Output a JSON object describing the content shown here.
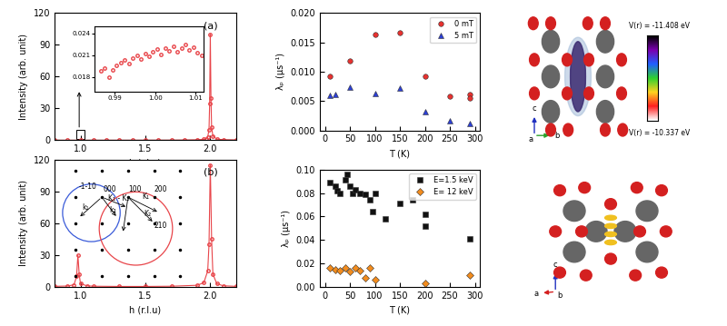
{
  "chart_data": [
    {
      "type": "line",
      "panel_label": "(a)",
      "x_label": "h (r.l.u)",
      "y_label": "Intensity (arb. unit)",
      "xlim": [
        0.8,
        2.2
      ],
      "ylim": [
        0,
        120
      ],
      "xticks": [
        {
          "value": 1.0,
          "label": "1.0"
        },
        {
          "value": 1.5,
          "label": "1.5"
        },
        {
          "value": 2.0,
          "label": "2.0"
        }
      ],
      "yticks": [
        0,
        30,
        60,
        90,
        120
      ],
      "series": [
        {
          "color": "#e8454a",
          "marker": "circle",
          "x": [
            0.8,
            0.9,
            1.0,
            1.1,
            1.2,
            1.3,
            1.4,
            1.5,
            1.6,
            1.7,
            1.8,
            1.9,
            1.95,
            1.97,
            1.98,
            1.99,
            1.995,
            2.0,
            2.005,
            2.01,
            2.02,
            2.05,
            2.1,
            2.2
          ],
          "values": [
            0.02,
            0.02,
            0.02,
            0.02,
            0.02,
            0.03,
            0.03,
            0.05,
            0.08,
            0.1,
            0.2,
            0.4,
            0.8,
            1.5,
            3,
            10,
            35,
            100,
            40,
            12,
            4,
            1,
            0.5,
            0.3
          ]
        }
      ]
    },
    {
      "type": "scatter",
      "xlim": [
        0.985,
        1.012
      ],
      "ylim": [
        0.016,
        0.025
      ],
      "xticks": [
        {
          "value": 0.99,
          "label": "0.99"
        },
        {
          "value": 1.0,
          "label": "1.00"
        },
        {
          "value": 1.01,
          "label": "1.01"
        }
      ],
      "yticks": [
        0.018,
        0.021,
        0.024
      ],
      "series": [
        {
          "color": "#e8454a",
          "marker": "circle",
          "x": [
            0.9865,
            0.9875,
            0.9885,
            0.9895,
            0.9905,
            0.9915,
            0.9925,
            0.9935,
            0.9945,
            0.9955,
            0.9965,
            0.9975,
            0.9985,
            0.9995,
            1.0005,
            1.0015,
            1.0025,
            1.0035,
            1.0045,
            1.0055,
            1.0065,
            1.0075,
            1.0085,
            1.0095,
            1.0105,
            1.0115
          ],
          "values": [
            0.0188,
            0.0192,
            0.018,
            0.019,
            0.0196,
            0.02,
            0.0203,
            0.0198,
            0.0206,
            0.021,
            0.0204,
            0.0212,
            0.0208,
            0.0215,
            0.0218,
            0.0211,
            0.022,
            0.0216,
            0.0222,
            0.0214,
            0.0219,
            0.0224,
            0.0217,
            0.0221,
            0.0213,
            0.021
          ]
        }
      ]
    },
    {
      "type": "line",
      "panel_label": "(b)",
      "x_label": "h (r.l.u)",
      "y_label": "Intensity (arb. unit)",
      "xlim": [
        0.8,
        2.2
      ],
      "ylim": [
        0,
        120
      ],
      "xticks": [
        {
          "value": 1.0,
          "label": "1.0"
        },
        {
          "value": 1.5,
          "label": "1.5"
        },
        {
          "value": 2.0,
          "label": "2.0"
        }
      ],
      "yticks": [
        0,
        30,
        60,
        90,
        120
      ],
      "annotations": [
        "-1-10",
        "000",
        "100",
        "200",
        "210",
        "k₁",
        "k₂",
        "K₁ - K₂",
        "K₁",
        "K₂"
      ],
      "series": [
        {
          "color": "#e8454a",
          "marker": "circle",
          "x": [
            0.8,
            0.9,
            0.95,
            0.97,
            0.98,
            0.99,
            1.0,
            1.05,
            1.1,
            1.3,
            1.5,
            1.7,
            1.9,
            1.95,
            1.98,
            1.99,
            2.0,
            2.01,
            2.02,
            2.05,
            2.1,
            2.2
          ],
          "values": [
            0.5,
            0.8,
            2,
            10,
            30,
            12,
            3,
            1,
            0.6,
            0.4,
            0.4,
            0.6,
            1.5,
            4,
            15,
            40,
            115,
            45,
            12,
            3,
            1,
            0.5
          ]
        }
      ]
    },
    {
      "type": "scatter",
      "x_label": "T (K)",
      "y_label": "λₚ (μs⁻¹)",
      "xlim": [
        -10,
        310
      ],
      "ylim": [
        0,
        0.02
      ],
      "xticks": [
        0,
        50,
        100,
        150,
        200,
        250,
        300
      ],
      "yticks": [
        {
          "value": 0,
          "label": "0.000"
        },
        {
          "value": 0.005,
          "label": "0.005"
        },
        {
          "value": 0.01,
          "label": "0.010"
        },
        {
          "value": 0.015,
          "label": "0.015"
        },
        {
          "value": 0.02,
          "label": "0.020"
        }
      ],
      "legend": "upper right",
      "series": [
        {
          "name": "0 mT",
          "color": "#e8312f",
          "marker": "circle",
          "x": [
            10,
            50,
            100,
            150,
            200,
            250,
            290,
            290
          ],
          "values": [
            0.0093,
            0.0118,
            0.0163,
            0.0167,
            0.0092,
            0.0058,
            0.0061,
            0.0055
          ]
        },
        {
          "name": "5 mT",
          "color": "#2b3fd6",
          "marker": "triangle",
          "x": [
            10,
            20,
            50,
            100,
            150,
            200,
            250,
            290
          ],
          "values": [
            0.006,
            0.0061,
            0.0073,
            0.0063,
            0.0072,
            0.0032,
            0.0017,
            0.0012
          ]
        }
      ]
    },
    {
      "type": "scatter",
      "x_label": "T (K)",
      "y_label": "λₚ (μs⁻¹)",
      "xlim": [
        -10,
        310
      ],
      "ylim": [
        0,
        0.1
      ],
      "xticks": [
        0,
        50,
        100,
        150,
        200,
        250,
        300
      ],
      "yticks": [
        {
          "value": 0,
          "label": "0.00"
        },
        {
          "value": 0.02,
          "label": "0.02"
        },
        {
          "value": 0.04,
          "label": "0.04"
        },
        {
          "value": 0.06,
          "label": "0.06"
        },
        {
          "value": 0.08,
          "label": "0.08"
        },
        {
          "value": 0.1,
          "label": "0.10"
        }
      ],
      "legend": "upper right",
      "series": [
        {
          "name": "E=1.5 keV",
          "color": "#111111",
          "marker": "square",
          "x": [
            10,
            20,
            25,
            30,
            40,
            45,
            50,
            55,
            60,
            70,
            80,
            90,
            95,
            100,
            120,
            150,
            175,
            200,
            200,
            290
          ],
          "values": [
            0.089,
            0.086,
            0.082,
            0.08,
            0.091,
            0.096,
            0.086,
            0.08,
            0.083,
            0.08,
            0.079,
            0.074,
            0.064,
            0.08,
            0.058,
            0.071,
            0.074,
            0.062,
            0.052,
            0.041
          ]
        },
        {
          "name": "E= 12 keV",
          "color": "#f28c1e",
          "marker": "diamond",
          "x": [
            10,
            20,
            30,
            40,
            50,
            60,
            70,
            80,
            90,
            100,
            200,
            290
          ],
          "values": [
            0.016,
            0.015,
            0.014,
            0.016,
            0.013,
            0.016,
            0.014,
            0.008,
            0.016,
            0.006,
            0.003,
            0.01
          ]
        }
      ]
    }
  ],
  "structures": [
    {
      "colorbar_labels": [
        "V(r) = -11.408 eV",
        "V(r) = -10.337 eV"
      ],
      "axis_labels": [
        "c",
        "b",
        "a"
      ]
    },
    {
      "axis_labels": [
        "c",
        "a",
        "b"
      ]
    }
  ]
}
